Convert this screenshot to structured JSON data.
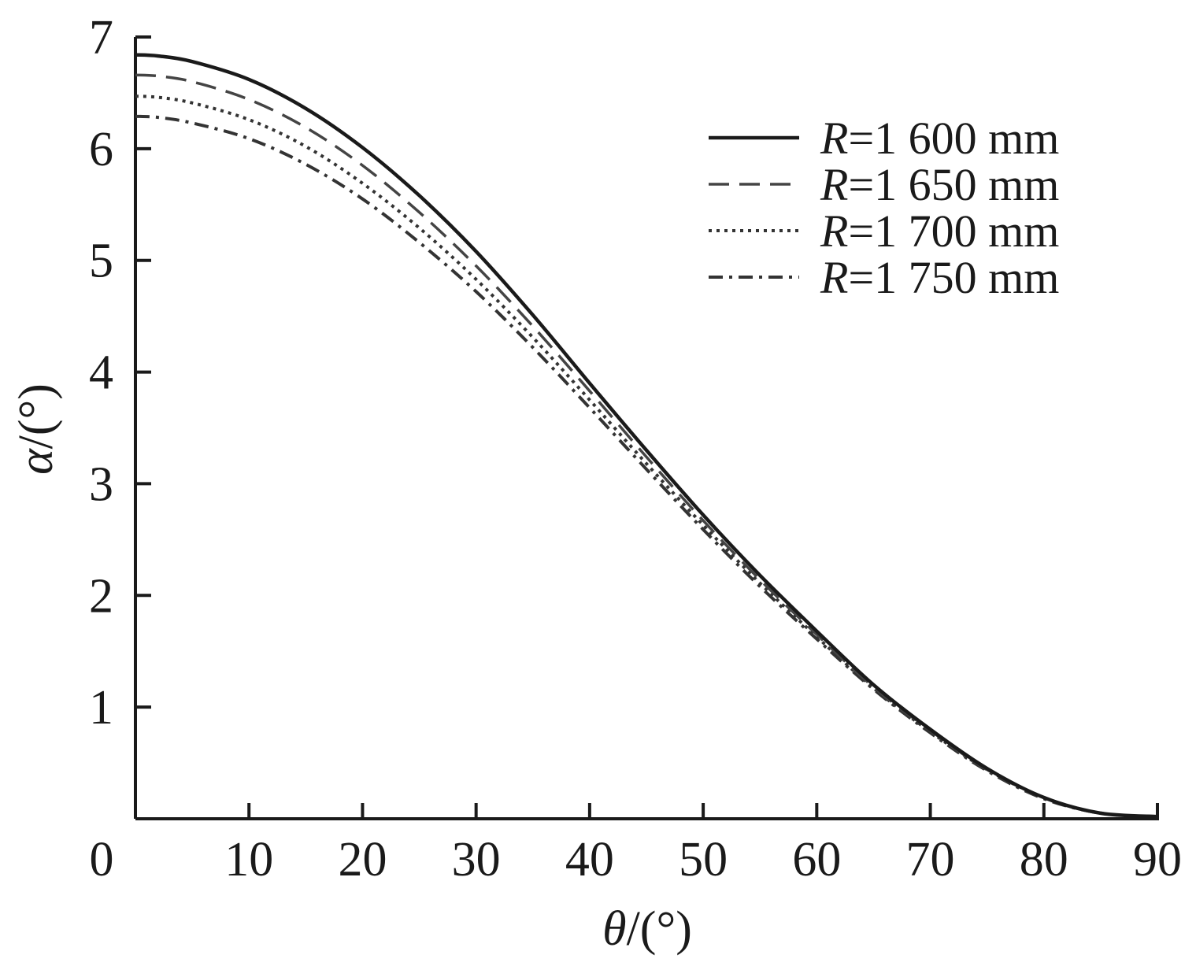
{
  "chart_data": {
    "type": "line",
    "title": "",
    "xlabel": {
      "symbol": "θ",
      "unit": "/(°)"
    },
    "ylabel": {
      "symbol": "α",
      "unit": "/(°)"
    },
    "xlim": [
      0,
      90
    ],
    "ylim": [
      0,
      7
    ],
    "xticks": [
      0,
      10,
      20,
      30,
      40,
      50,
      60,
      70,
      80,
      90
    ],
    "yticks": [
      1,
      2,
      3,
      4,
      5,
      6,
      7
    ],
    "grid": false,
    "legend_position": "top-right",
    "x": [
      0,
      2,
      5,
      10,
      15,
      20,
      25,
      30,
      35,
      40,
      45,
      50,
      55,
      60,
      65,
      70,
      75,
      80,
      85,
      90
    ],
    "series": [
      {
        "name_symbol": "R",
        "name_value": "=1 600 mm",
        "line_style": "solid",
        "values": [
          6.84,
          6.83,
          6.78,
          6.62,
          6.36,
          6.01,
          5.58,
          5.08,
          4.51,
          3.9,
          3.3,
          2.72,
          2.18,
          1.68,
          1.2,
          0.8,
          0.45,
          0.19,
          0.05,
          0.02
        ]
      },
      {
        "name_symbol": "R",
        "name_value": "=1 650 mm",
        "line_style": "dashed",
        "values": [
          6.66,
          6.65,
          6.6,
          6.44,
          6.19,
          5.85,
          5.43,
          4.95,
          4.41,
          3.83,
          3.24,
          2.67,
          2.14,
          1.65,
          1.18,
          0.79,
          0.44,
          0.19,
          0.05,
          0.02
        ]
      },
      {
        "name_symbol": "R",
        "name_value": "=1 700 mm",
        "line_style": "dotted",
        "values": [
          6.47,
          6.46,
          6.41,
          6.26,
          6.02,
          5.69,
          5.29,
          4.83,
          4.31,
          3.75,
          3.18,
          2.63,
          2.11,
          1.63,
          1.17,
          0.78,
          0.44,
          0.19,
          0.05,
          0.02
        ]
      },
      {
        "name_symbol": "R",
        "name_value": "=1 750 mm",
        "line_style": "dashdot",
        "values": [
          6.29,
          6.28,
          6.23,
          6.09,
          5.86,
          5.55,
          5.16,
          4.72,
          4.22,
          3.68,
          3.13,
          2.59,
          2.08,
          1.61,
          1.16,
          0.77,
          0.43,
          0.18,
          0.05,
          0.02
        ]
      }
    ]
  }
}
